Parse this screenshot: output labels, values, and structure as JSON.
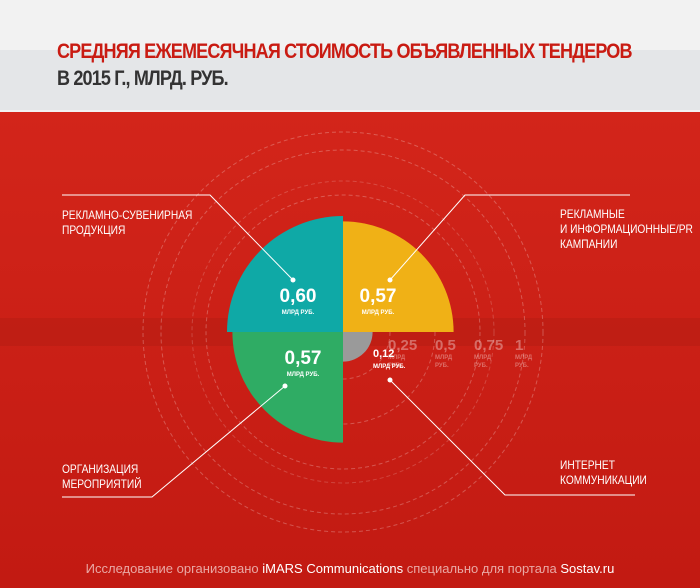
{
  "header": {
    "title_line1": "СРЕДНЯЯ ЕЖЕМЕСЯЧНАЯ СТОИМОСТЬ ОБЪЯВЛЕННЫХ ТЕНДЕРОВ",
    "title_line2": "В 2015 Г., МЛРД. РУБ."
  },
  "chart_data": {
    "type": "polar-area",
    "title": "Средняя ежемесячная стоимость объявленных тендеров в 2015 г., млрд. руб.",
    "unit": "МЛРД РУБ.",
    "series": [
      {
        "name": "Рекламно-сувенирная продукция",
        "value": 0.6,
        "label": "0,60",
        "quadrant": "top-left",
        "color": "#0fa9a6"
      },
      {
        "name": "Рекламные и информационные/PR кампании",
        "value": 0.57,
        "label": "0,57",
        "quadrant": "top-right",
        "color": "#f0b116"
      },
      {
        "name": "Организация мероприятий",
        "value": 0.57,
        "label": "0,57",
        "quadrant": "bottom-left",
        "color": "#2fac64"
      },
      {
        "name": "Интернет коммуникации",
        "value": 0.12,
        "label": "0,12",
        "quadrant": "bottom-right",
        "color": "#9a9a9a"
      }
    ],
    "ticks": [
      {
        "value": 0.25,
        "label": "0,25",
        "unit": "МЛРД РУБ."
      },
      {
        "value": 0.5,
        "label": "0,5",
        "unit": "МЛРД РУБ."
      },
      {
        "value": 0.75,
        "label": "0,75",
        "unit": "МЛРД РУБ."
      },
      {
        "value": 1,
        "label": "1",
        "unit": "МЛРД РУБ."
      }
    ]
  },
  "labels": {
    "top_left": [
      "РЕКЛАМНО-СУВЕНИРНАЯ",
      "ПРОДУКЦИЯ"
    ],
    "top_right": [
      "РЕКЛАМНЫЕ",
      "И ИНФОРМАЦИОННЫЕ/PR",
      "КАМПАНИИ"
    ],
    "bottom_left": [
      "ОРГАНИЗАЦИЯ",
      "МЕРОПРИЯТИЙ"
    ],
    "bottom_right": [
      "ИНТЕРНЕТ",
      "КОММУНИКАЦИИ"
    ]
  },
  "footer": {
    "part1": "Исследование организовано ",
    "org": "iMARS Communications",
    "part2": " специально для портала ",
    "site": "Sostav.ru"
  }
}
